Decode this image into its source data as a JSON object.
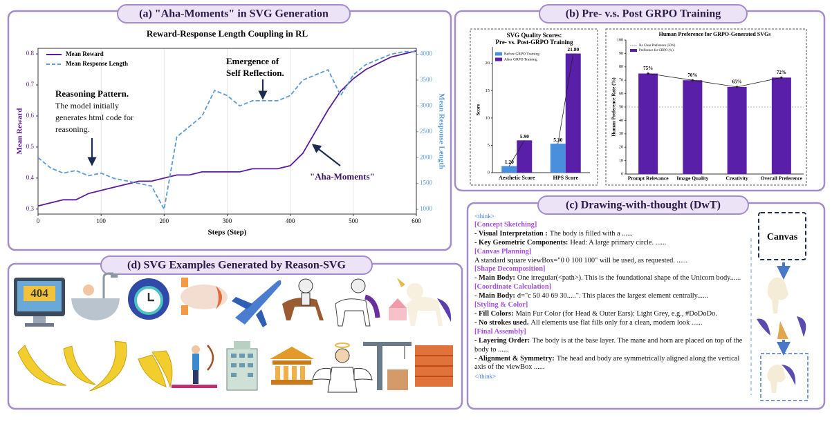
{
  "panel_titles": [
    "(a) \"Aha-Moments\" in SVG Generation",
    "(b) Pre- v.s. Post GRPO Training",
    "(c) Drawing-with-thought (DwT)",
    "(d) SVG Examples Generated by Reason-SVG"
  ],
  "chart_data": [
    {
      "type": "line",
      "title": "Reward-Response Length Coupling in RL",
      "xlabel": "Steps (Step)",
      "ylabel": "Mean Reward",
      "y2label": "Mean Response Length",
      "x": [
        0,
        20,
        40,
        60,
        80,
        100,
        120,
        140,
        160,
        180,
        200,
        220,
        240,
        260,
        280,
        300,
        320,
        340,
        360,
        380,
        400,
        420,
        440,
        460,
        480,
        500,
        520,
        540,
        560,
        580,
        600
      ],
      "series": [
        {
          "name": "Mean Reward",
          "color": "#5b1a9e",
          "values": [
            0.31,
            0.32,
            0.33,
            0.33,
            0.35,
            0.36,
            0.37,
            0.38,
            0.39,
            0.39,
            0.4,
            0.41,
            0.41,
            0.42,
            0.42,
            0.42,
            0.42,
            0.43,
            0.43,
            0.43,
            0.44,
            0.48,
            0.55,
            0.62,
            0.68,
            0.72,
            0.75,
            0.77,
            0.79,
            0.8,
            0.81
          ]
        },
        {
          "name": "Mean Response Length",
          "color": "#5b9bd5",
          "linestyle": "dashed",
          "axis": "y2",
          "values": [
            2000,
            1800,
            1700,
            1750,
            1650,
            1700,
            1600,
            1550,
            1500,
            1450,
            1000,
            2400,
            2600,
            2800,
            3300,
            3200,
            3000,
            3100,
            3100,
            3100,
            3200,
            3500,
            3600,
            3700,
            3200,
            3600,
            3800,
            3900,
            4000,
            4050,
            4050
          ]
        }
      ],
      "xlim": [
        0,
        600
      ],
      "xticks": [
        0,
        100,
        200,
        300,
        400,
        500,
        600
      ],
      "ylim": [
        0.284,
        0.818
      ],
      "yticks": [
        0.3,
        0.4,
        0.5,
        0.6,
        0.7,
        0.8
      ],
      "y2lim": [
        908,
        4114
      ],
      "y2ticks": [
        1000,
        1500,
        2000,
        2500,
        3000,
        3500,
        4000
      ],
      "grid": "x",
      "legend": "upper left",
      "annotations": [
        {
          "bold": [
            "Reasoning Pattern."
          ],
          "lines": [
            "The model initially",
            "generates html code for",
            "reasoning."
          ]
        },
        {
          "bold": [
            "Emergence of",
            "Self Reflection."
          ]
        },
        {
          "lines": [
            "\"Aha-Moments\""
          ]
        }
      ]
    },
    {
      "type": "grouped_bar",
      "title": [
        "SVG Quality Scores:",
        "Pre- vs. Post-GRPO Training"
      ],
      "ylabel": "Score",
      "categories": [
        "Aesthetic Score",
        "HPS Score"
      ],
      "series": [
        {
          "name": "Before GRPO Training",
          "color": "#4a8fdc",
          "values": [
            1.2,
            5.3
          ],
          "value_labels": [
            "1.20",
            "5.30"
          ]
        },
        {
          "name": "After GRPO Training",
          "color": "#5a1fa8",
          "values": [
            5.9,
            21.8
          ],
          "value_labels": [
            "5.90",
            "21.80"
          ]
        }
      ],
      "ylim": [
        0,
        23
      ],
      "yticks": [
        0,
        5,
        10,
        15,
        20
      ],
      "legend": "upper left"
    },
    {
      "type": "bar_line",
      "title": "Human Preference for GRPO-Generated SVGs",
      "ylabel": "Human Preference Rate (%)",
      "categories": [
        "Prompt Relevance",
        "Image Quality",
        "Creativity",
        "Overall Preference"
      ],
      "series": [
        {
          "name": "Preference for GRPO (%)",
          "color": "#5a1fa8",
          "values": [
            75,
            70,
            65,
            72
          ],
          "value_labels": [
            "75%",
            "70%",
            "65%",
            "72%"
          ]
        }
      ],
      "reference": {
        "name": "No Clear Preference (50%)",
        "value": 50
      },
      "ylim": [
        0,
        100
      ],
      "yticks": [
        0,
        10,
        20,
        30,
        40,
        50,
        60,
        70,
        80,
        90,
        100
      ],
      "legend": "upper left"
    }
  ],
  "dwt": {
    "open_tag": "<think>",
    "close_tag": "</think>",
    "sections": [
      {
        "heading": "[Concept Sketching]",
        "items": [
          {
            "label": "- Visual Interpretation :",
            "text": "The body is filled with a ......"
          },
          {
            "label": "- Key Geometric Components:",
            "text": "Head: A large primary circle. ......"
          }
        ]
      },
      {
        "heading": "[Canvas Planning]",
        "items": [
          {
            "text": "A standard square viewBox=\"0 0 100 100\" will be used, as requested. ......"
          }
        ]
      },
      {
        "heading": "[Shape Decomposition]",
        "items": [
          {
            "label": "- Main Body:",
            "text": "One irregular(<path>). This is the foundational shape of the Unicorn body......"
          }
        ]
      },
      {
        "heading": "[Coordinate Calculation]",
        "items": [
          {
            "label": "- Main Body:",
            "text": "d=\"c 50 40 69 30.....\". This places the largest element centrally......"
          }
        ]
      },
      {
        "heading": "[Styling & Color]",
        "items": [
          {
            "label": "- Fill Colors:",
            "text": "Main Fur Color (for Head & Outer Ears): Light Grey, e.g., #DoDoDo."
          },
          {
            "label": "- No strokes used.",
            "text": "All elements use flat fills only for a clean, modern look ......"
          }
        ]
      },
      {
        "heading": "[Final Assembly]",
        "items": [
          {
            "label": "- Layering Order:",
            "text": "The body is at the base layer. The mane and horn are placed on top of the body to ......"
          },
          {
            "label": "- Alignment & Symmetry:",
            "text": "The head and body are symmetrically aligned along the vertical axis of the viewBox ......"
          }
        ]
      }
    ]
  },
  "canvas_label": "Canvas",
  "icon_text": "404"
}
